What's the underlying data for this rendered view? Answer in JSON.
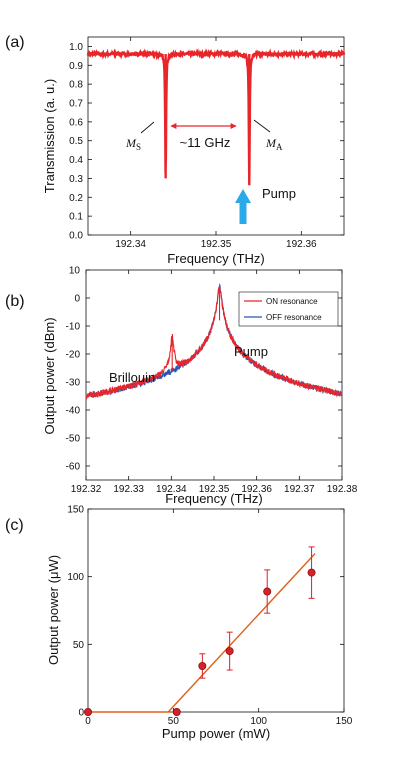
{
  "colors": {
    "on": "#e8262a",
    "off": "#2b55b5",
    "arrow": "#2aa9e8",
    "gap": "#e8262a",
    "fit": "#e0601a",
    "marker": "#d9202a"
  },
  "chart_data": [
    {
      "panel_label": "(a)",
      "type": "line",
      "xlabel": "Frequency (THz)",
      "ylabel": "Transmission (a. u.)",
      "xlim": [
        192.335,
        192.365
      ],
      "ylim": [
        0,
        1.05
      ],
      "x_ticks": [
        192.34,
        192.35,
        192.36
      ],
      "y_ticks": [
        0,
        0.1,
        0.2,
        0.3,
        0.4,
        0.5,
        0.6,
        0.7,
        0.8,
        0.9,
        1.0
      ],
      "baseline": 0.96,
      "dips": [
        {
          "x": 192.3441,
          "min": 0.3
        },
        {
          "x": 192.3539,
          "min": 0.27
        }
      ],
      "annotations": {
        "gap": "~11 GHz",
        "pump": "Pump",
        "ms_main": "M",
        "ms_sub": "S",
        "ma_main": "M",
        "ma_sub": "A"
      }
    },
    {
      "panel_label": "(b)",
      "type": "line",
      "xlabel": "Frequency (THz)",
      "ylabel": "Output power (dBm)",
      "xlim": [
        192.32,
        192.38
      ],
      "ylim": [
        -65,
        10
      ],
      "x_ticks": [
        192.32,
        192.33,
        192.34,
        192.35,
        192.36,
        192.37,
        192.38
      ],
      "y_ticks": [
        -60,
        -50,
        -40,
        -30,
        -20,
        -10,
        0,
        10
      ],
      "series": [
        {
          "name": "ON resonance"
        },
        {
          "name": "OFF resonance"
        }
      ],
      "floor": -60,
      "peaks": [
        {
          "x": 192.3402,
          "y": -14
        },
        {
          "x": 192.3513,
          "y": 4
        }
      ],
      "annotations": {
        "brillouin": "Brillouin",
        "pump": "Pump"
      },
      "legend": "top-right"
    },
    {
      "panel_label": "(c)",
      "type": "scatter",
      "xlabel": "Pump power (mW)",
      "ylabel": "Output power (μW)",
      "xlim": [
        0,
        150
      ],
      "ylim": [
        0,
        150
      ],
      "x_ticks": [
        0,
        50,
        100,
        150
      ],
      "y_ticks": [
        0,
        50,
        100,
        150
      ],
      "points": [
        {
          "x": 0,
          "y": 0,
          "err": 0
        },
        {
          "x": 52,
          "y": 0,
          "err": 0
        },
        {
          "x": 67,
          "y": 34,
          "err": 9
        },
        {
          "x": 83,
          "y": 45,
          "err": 14
        },
        {
          "x": 105,
          "y": 89,
          "err": 16
        },
        {
          "x": 131,
          "y": 103,
          "err": 19
        }
      ],
      "fit": [
        {
          "x": 0,
          "y": 0
        },
        {
          "x": 47,
          "y": 0
        },
        {
          "x": 133,
          "y": 117
        }
      ]
    }
  ]
}
